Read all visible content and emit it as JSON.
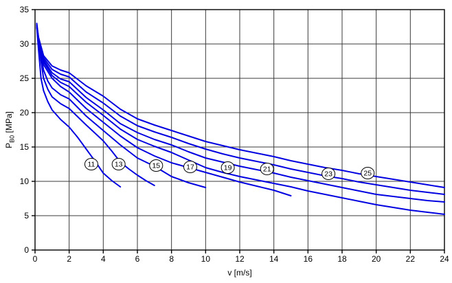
{
  "chart": {
    "ylabel_main": "P",
    "ylabel_sub": "B0",
    "ylabel_unit": " [MPa]",
    "curve_color": "#0000e0",
    "grid_color": "#3a3a3a",
    "frame_color": "#000000",
    "text_color": "#000000",
    "badge_fill": "#ffffff",
    "badge_stroke": "#000000"
  },
  "chart_data": {
    "type": "line",
    "title": "",
    "xlabel": "v [m/s]",
    "ylabel": "P_B0 [MPa]",
    "xlim": [
      0,
      24
    ],
    "ylim": [
      0,
      35
    ],
    "xticks": [
      0,
      2,
      4,
      6,
      8,
      10,
      12,
      14,
      16,
      18,
      20,
      22,
      24
    ],
    "yticks": [
      0,
      5,
      10,
      15,
      20,
      25,
      30,
      35
    ],
    "grid": true,
    "legend_position": "none",
    "series": [
      {
        "name": "11",
        "label_at": [
          3.3,
          12.5
        ],
        "points": [
          [
            0.1,
            32.5
          ],
          [
            0.2,
            29.3
          ],
          [
            0.35,
            25.0
          ],
          [
            0.5,
            23.2
          ],
          [
            0.75,
            21.6
          ],
          [
            1,
            20.4
          ],
          [
            1.5,
            19.0
          ],
          [
            2,
            17.9
          ],
          [
            2.5,
            16.4
          ],
          [
            3,
            14.7
          ],
          [
            3.5,
            13.0
          ],
          [
            4,
            11.2
          ],
          [
            4.5,
            10.1
          ],
          [
            5,
            9.2
          ]
        ]
      },
      {
        "name": "13",
        "label_at": [
          4.9,
          12.5
        ],
        "points": [
          [
            0.1,
            32.6
          ],
          [
            0.2,
            30.0
          ],
          [
            0.5,
            25.0
          ],
          [
            0.75,
            23.4
          ],
          [
            1,
            22.3
          ],
          [
            1.5,
            21.3
          ],
          [
            2,
            20.6
          ],
          [
            3,
            18.2
          ],
          [
            4,
            15.9
          ],
          [
            4.5,
            14.4
          ],
          [
            5,
            12.8
          ],
          [
            5.5,
            11.8
          ],
          [
            6,
            10.9
          ],
          [
            6.5,
            10.1
          ],
          [
            7,
            9.4
          ]
        ]
      },
      {
        "name": "15",
        "label_at": [
          7.1,
          12.3
        ],
        "points": [
          [
            0.1,
            32.6
          ],
          [
            0.2,
            30.4
          ],
          [
            0.5,
            26.2
          ],
          [
            0.75,
            24.6
          ],
          [
            1,
            23.6
          ],
          [
            1.5,
            22.6
          ],
          [
            2,
            22.0
          ],
          [
            3,
            19.5
          ],
          [
            4,
            17.4
          ],
          [
            5,
            15.3
          ],
          [
            6,
            13.4
          ],
          [
            7,
            12.2
          ],
          [
            8,
            10.7
          ],
          [
            9,
            9.8
          ],
          [
            10,
            9.1
          ]
        ]
      },
      {
        "name": "17",
        "label_at": [
          9.1,
          12.1
        ],
        "points": [
          [
            0.1,
            32.7
          ],
          [
            0.2,
            30.6
          ],
          [
            0.5,
            27.0
          ],
          [
            1,
            25.0
          ],
          [
            1.5,
            23.8
          ],
          [
            2,
            23.0
          ],
          [
            3,
            20.6
          ],
          [
            4,
            18.6
          ],
          [
            5,
            16.6
          ],
          [
            6,
            14.9
          ],
          [
            7,
            13.7
          ],
          [
            8,
            12.7
          ],
          [
            9,
            12.0
          ],
          [
            10,
            11.3
          ],
          [
            11,
            10.6
          ],
          [
            12,
            9.9
          ],
          [
            13,
            9.3
          ],
          [
            14,
            8.7
          ],
          [
            15,
            7.9
          ]
        ]
      },
      {
        "name": "19",
        "label_at": [
          11.3,
          12.0
        ],
        "points": [
          [
            0.1,
            32.7
          ],
          [
            0.2,
            30.7
          ],
          [
            0.5,
            27.4
          ],
          [
            1,
            25.4
          ],
          [
            1.5,
            24.4
          ],
          [
            2,
            23.8
          ],
          [
            3,
            21.5
          ],
          [
            4,
            19.6
          ],
          [
            5,
            17.6
          ],
          [
            6,
            16.1
          ],
          [
            7,
            15.1
          ],
          [
            8,
            14.2
          ],
          [
            9,
            13.1
          ],
          [
            10,
            12.0
          ],
          [
            11,
            11.3
          ],
          [
            12,
            10.7
          ],
          [
            13,
            10.2
          ],
          [
            14,
            9.7
          ],
          [
            15,
            9.2
          ],
          [
            16,
            8.6
          ],
          [
            17,
            8.1
          ],
          [
            18,
            7.6
          ],
          [
            19,
            7.1
          ],
          [
            20,
            6.6
          ],
          [
            21,
            6.2
          ],
          [
            22,
            5.8
          ],
          [
            23,
            5.5
          ],
          [
            24,
            5.2
          ]
        ]
      },
      {
        "name": "21",
        "label_at": [
          13.6,
          11.8
        ],
        "points": [
          [
            0.1,
            32.8
          ],
          [
            0.2,
            30.8
          ],
          [
            0.5,
            27.7
          ],
          [
            1,
            25.8
          ],
          [
            1.5,
            24.9
          ],
          [
            2,
            24.5
          ],
          [
            3,
            22.2
          ],
          [
            4,
            20.4
          ],
          [
            5,
            18.4
          ],
          [
            6,
            17.1
          ],
          [
            7,
            16.1
          ],
          [
            8,
            15.3
          ],
          [
            9,
            14.3
          ],
          [
            10,
            13.4
          ],
          [
            11,
            12.8
          ],
          [
            12,
            12.2
          ],
          [
            13,
            11.7
          ],
          [
            14,
            11.2
          ],
          [
            15,
            10.6
          ],
          [
            16,
            10.1
          ],
          [
            17,
            9.6
          ],
          [
            18,
            9.1
          ],
          [
            19,
            8.6
          ],
          [
            20,
            8.1
          ],
          [
            21,
            7.8
          ],
          [
            22,
            7.5
          ],
          [
            23,
            7.2
          ],
          [
            24,
            7.0
          ]
        ]
      },
      {
        "name": "23",
        "label_at": [
          17.2,
          11.1
        ],
        "points": [
          [
            0.1,
            32.8
          ],
          [
            0.2,
            30.9
          ],
          [
            0.5,
            28.0
          ],
          [
            1,
            26.3
          ],
          [
            1.5,
            25.6
          ],
          [
            2,
            25.2
          ],
          [
            3,
            23.0
          ],
          [
            4,
            21.4
          ],
          [
            5,
            19.5
          ],
          [
            6,
            18.1
          ],
          [
            7,
            17.2
          ],
          [
            8,
            16.4
          ],
          [
            9,
            15.5
          ],
          [
            10,
            14.7
          ],
          [
            11,
            14.0
          ],
          [
            12,
            13.4
          ],
          [
            13,
            12.9
          ],
          [
            14,
            12.4
          ],
          [
            15,
            11.8
          ],
          [
            16,
            11.3
          ],
          [
            17,
            10.8
          ],
          [
            18,
            10.4
          ],
          [
            19,
            9.9
          ],
          [
            20,
            9.5
          ],
          [
            21,
            9.1
          ],
          [
            22,
            8.7
          ],
          [
            23,
            8.4
          ],
          [
            24,
            8.1
          ]
        ]
      },
      {
        "name": "25",
        "label_at": [
          19.5,
          11.2
        ],
        "points": [
          [
            0.1,
            33.0
          ],
          [
            0.2,
            31.0
          ],
          [
            0.5,
            28.3
          ],
          [
            1,
            26.8
          ],
          [
            1.5,
            26.2
          ],
          [
            2,
            25.8
          ],
          [
            3,
            23.9
          ],
          [
            4,
            22.4
          ],
          [
            5,
            20.5
          ],
          [
            6,
            19.1
          ],
          [
            7,
            18.2
          ],
          [
            8,
            17.4
          ],
          [
            9,
            16.6
          ],
          [
            10,
            15.8
          ],
          [
            11,
            15.2
          ],
          [
            12,
            14.6
          ],
          [
            13,
            14.1
          ],
          [
            14,
            13.6
          ],
          [
            15,
            13.0
          ],
          [
            16,
            12.5
          ],
          [
            17,
            12.0
          ],
          [
            18,
            11.6
          ],
          [
            19,
            11.1
          ],
          [
            20,
            10.7
          ],
          [
            21,
            10.3
          ],
          [
            22,
            9.9
          ],
          [
            23,
            9.5
          ],
          [
            24,
            9.1
          ]
        ]
      }
    ]
  }
}
